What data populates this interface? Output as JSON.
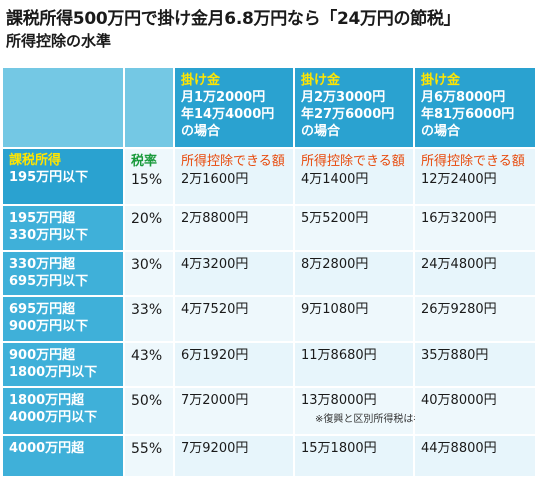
{
  "headline": "課税所得500万円で掛け金月6.8万円なら「24万円の節税」",
  "subtitle": "所得控除の水準",
  "plans": [
    {
      "label": "掛け金",
      "desc": "月1万2000円\n年14万4000円\nの場合"
    },
    {
      "label": "掛け金",
      "desc": "月2万3000円\n年27万6000円\nの場合"
    },
    {
      "label": "掛け金",
      "desc": "月6万8000円\n年81万6000円\nの場合"
    }
  ],
  "col_heads": {
    "income": "課税所得",
    "rate": "税率",
    "deduction": "所得控除できる額"
  },
  "rows": [
    {
      "bracket": "195万円以下",
      "rate": "15%",
      "values": [
        "2万1600円",
        "4万1400円",
        "12万2400円"
      ]
    },
    {
      "bracket": "195万円超\n330万円以下",
      "rate": "20%",
      "values": [
        "2万8800円",
        "5万5200円",
        "16万3200円"
      ]
    },
    {
      "bracket": "330万円超\n695万円以下",
      "rate": "30%",
      "values": [
        "4万3200円",
        "8万2800円",
        "24万4800円"
      ]
    },
    {
      "bracket": "695万円超\n900万円以下",
      "rate": "33%",
      "values": [
        "4万7520円",
        "9万1080円",
        "26万9280円"
      ]
    },
    {
      "bracket": "900万円超\n1800万円以下",
      "rate": "43%",
      "values": [
        "6万1920円",
        "11万8680円",
        "35万880円"
      ]
    },
    {
      "bracket": "1800万円超\n4000万円以下",
      "rate": "50%",
      "values": [
        "7万2000円",
        "13万8000円",
        "40万8000円"
      ]
    },
    {
      "bracket": "4000万円超",
      "rate": "55%",
      "values": [
        "7万9200円",
        "15万1800円",
        "44万8800円"
      ]
    }
  ],
  "footnote": "※復興と区別所得税は考慮していない"
}
